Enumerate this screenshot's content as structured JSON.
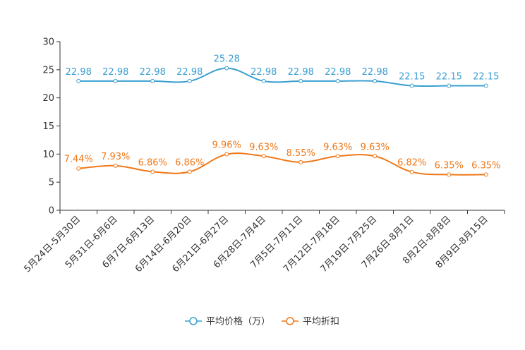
{
  "chart_data": {
    "type": "line",
    "title": "",
    "xlabel": "",
    "ylabel": "",
    "ylim": [
      0,
      30
    ],
    "yticks": [
      "0",
      "5",
      "10",
      "15",
      "20",
      "25",
      "30"
    ],
    "grid": false,
    "legend_position": "bottom-center",
    "categories": [
      "5月24日-5月30日",
      "5月31日-6月6日",
      "6月7日-6月13日",
      "6月14日-6月20日",
      "6月21日-6月27日",
      "6月28日-7月4日",
      "7月5日-7月11日",
      "7月12日-7月18日",
      "7月19日-7月25日",
      "7月26日-8月1日",
      "8月2日-8月8日",
      "8月9日-8月15日"
    ],
    "series": [
      {
        "name": "平均价格（万）",
        "color": "#3a9fd1",
        "values": [
          22.98,
          22.98,
          22.98,
          22.98,
          25.28,
          22.98,
          22.98,
          22.98,
          22.98,
          22.15,
          22.15,
          22.15
        ],
        "labels": [
          "22.98",
          "22.98",
          "22.98",
          "22.98",
          "25.28",
          "22.98",
          "22.98",
          "22.98",
          "22.98",
          "22.15",
          "22.15",
          "22.15"
        ]
      },
      {
        "name": "平均折扣",
        "color": "#f07818",
        "values": [
          7.44,
          7.93,
          6.86,
          6.86,
          9.96,
          9.63,
          8.55,
          9.63,
          9.63,
          6.82,
          6.35,
          6.35
        ],
        "labels": [
          "7.44%",
          "7.93%",
          "6.86%",
          "6.86%",
          "9.96%",
          "9.63%",
          "8.55%",
          "9.63%",
          "9.63%",
          "6.82%",
          "6.35%",
          "6.35%"
        ]
      }
    ]
  }
}
